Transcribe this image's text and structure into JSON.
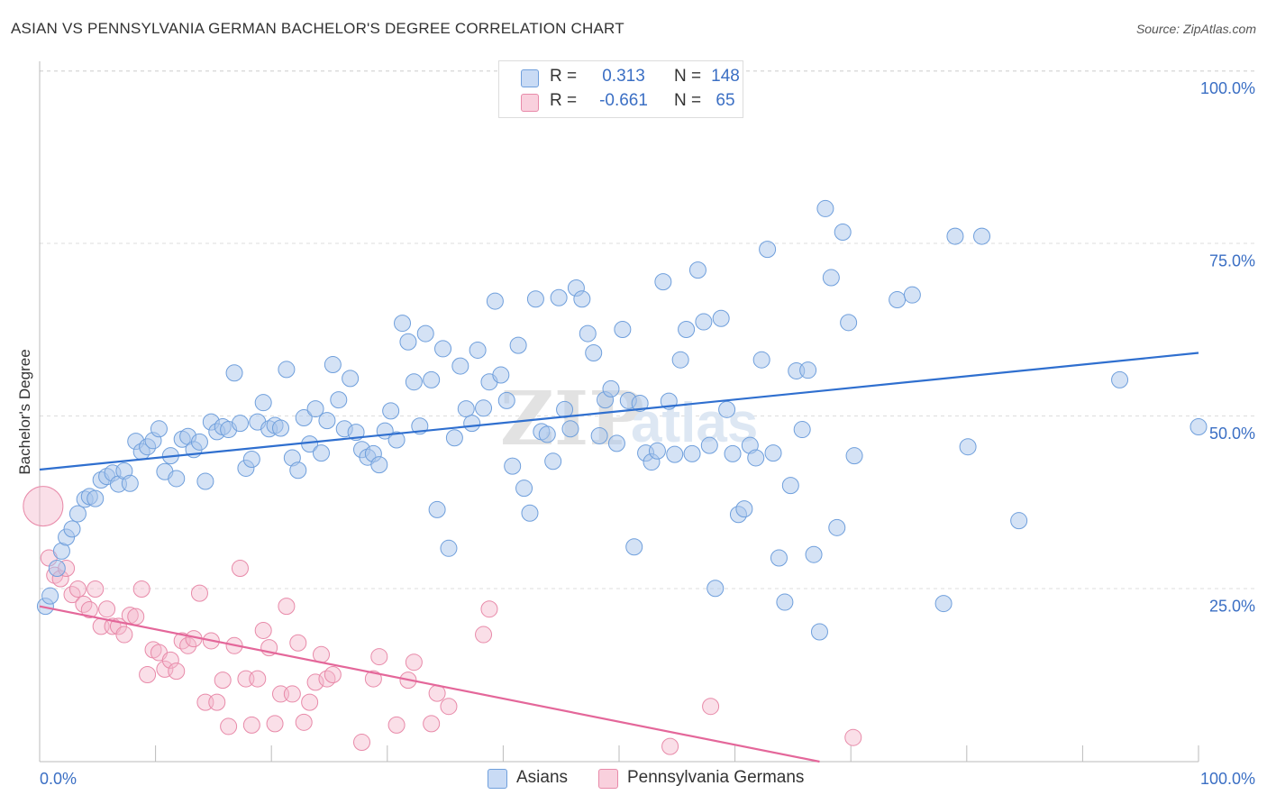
{
  "header": {
    "title": "ASIAN VS PENNSYLVANIA GERMAN BACHELOR'S DEGREE CORRELATION CHART",
    "source": "Source: ZipAtlas.com"
  },
  "legend": {
    "r_label": "R =",
    "n_label": "N =",
    "rows": [
      {
        "r": "0.313",
        "n": "148"
      },
      {
        "r": "-0.661",
        "n": "65"
      }
    ]
  },
  "watermark": {
    "zip": "ZIP",
    "atlas": "atlas"
  },
  "colors": {
    "asian_fill": "#a9c6ec",
    "asian_stroke": "#6f9fdc",
    "asian_line": "#2f6fcf",
    "pg_fill": "#f4b8cb",
    "pg_stroke": "#e88aa9",
    "pg_line": "#e4679a",
    "axis_text": "#3b6fc4"
  },
  "chart_data": {
    "type": "scatter",
    "title": "ASIAN VS PENNSYLVANIA GERMAN BACHELOR'S DEGREE CORRELATION CHART",
    "ylabel": "Bachelor's Degree",
    "xlabel": "",
    "xlim": [
      0,
      100
    ],
    "ylim": [
      0,
      100
    ],
    "x_tick_labels": [
      "0.0%",
      "100.0%"
    ],
    "y_tick_labels": [
      "100.0%",
      "75.0%",
      "50.0%",
      "25.0%"
    ],
    "y_ticks": [
      100,
      75,
      50,
      25
    ],
    "grid": true,
    "legend_position": "top-center",
    "series": [
      {
        "name": "Asians",
        "r": 0.313,
        "n": 148,
        "trend": [
          [
            0,
            42.3
          ],
          [
            100,
            59.2
          ]
        ],
        "points": [
          [
            0.5,
            22.5
          ],
          [
            0.9,
            24.0
          ],
          [
            1.5,
            28.0
          ],
          [
            1.9,
            30.5
          ],
          [
            2.3,
            32.5
          ],
          [
            2.8,
            33.7
          ],
          [
            3.3,
            35.9
          ],
          [
            3.9,
            38.0
          ],
          [
            4.3,
            38.4
          ],
          [
            4.8,
            38.1
          ],
          [
            5.3,
            40.8
          ],
          [
            5.8,
            41.3
          ],
          [
            6.3,
            41.8
          ],
          [
            6.8,
            40.2
          ],
          [
            7.3,
            42.1
          ],
          [
            7.8,
            40.3
          ],
          [
            8.3,
            46.4
          ],
          [
            8.8,
            44.9
          ],
          [
            9.3,
            45.6
          ],
          [
            9.8,
            46.5
          ],
          [
            10.3,
            48.2
          ],
          [
            10.8,
            42.0
          ],
          [
            11.3,
            44.3
          ],
          [
            11.8,
            41.0
          ],
          [
            12.3,
            46.7
          ],
          [
            12.8,
            47.1
          ],
          [
            13.3,
            45.2
          ],
          [
            13.8,
            46.3
          ],
          [
            14.3,
            40.6
          ],
          [
            14.8,
            49.2
          ],
          [
            15.3,
            47.8
          ],
          [
            15.8,
            48.5
          ],
          [
            16.3,
            48.1
          ],
          [
            16.8,
            56.3
          ],
          [
            17.3,
            49.0
          ],
          [
            17.8,
            42.5
          ],
          [
            18.3,
            43.8
          ],
          [
            18.8,
            49.2
          ],
          [
            19.3,
            52.0
          ],
          [
            19.8,
            48.2
          ],
          [
            20.3,
            48.7
          ],
          [
            20.8,
            48.3
          ],
          [
            21.3,
            56.8
          ],
          [
            21.8,
            44.0
          ],
          [
            22.3,
            42.2
          ],
          [
            22.8,
            49.8
          ],
          [
            23.3,
            46.0
          ],
          [
            23.8,
            51.1
          ],
          [
            24.3,
            44.7
          ],
          [
            24.8,
            49.4
          ],
          [
            25.3,
            57.5
          ],
          [
            25.8,
            52.4
          ],
          [
            26.3,
            48.2
          ],
          [
            26.8,
            55.5
          ],
          [
            27.3,
            47.7
          ],
          [
            27.8,
            45.2
          ],
          [
            28.3,
            44.1
          ],
          [
            28.8,
            44.6
          ],
          [
            29.3,
            43.0
          ],
          [
            29.8,
            47.9
          ],
          [
            30.3,
            50.8
          ],
          [
            30.8,
            46.6
          ],
          [
            31.3,
            63.5
          ],
          [
            31.8,
            60.8
          ],
          [
            32.3,
            55.0
          ],
          [
            32.8,
            48.6
          ],
          [
            33.3,
            62.0
          ],
          [
            33.8,
            55.3
          ],
          [
            34.3,
            36.5
          ],
          [
            34.8,
            59.8
          ],
          [
            35.3,
            30.9
          ],
          [
            35.8,
            46.9
          ],
          [
            36.3,
            57.3
          ],
          [
            36.8,
            51.1
          ],
          [
            37.3,
            49.0
          ],
          [
            37.8,
            59.6
          ],
          [
            38.3,
            51.2
          ],
          [
            38.8,
            55.0
          ],
          [
            39.3,
            66.7
          ],
          [
            39.8,
            56.0
          ],
          [
            40.3,
            52.3
          ],
          [
            40.8,
            42.8
          ],
          [
            41.3,
            60.3
          ],
          [
            41.8,
            39.6
          ],
          [
            42.3,
            36.0
          ],
          [
            42.8,
            67.0
          ],
          [
            43.3,
            47.8
          ],
          [
            43.8,
            47.4
          ],
          [
            44.3,
            43.5
          ],
          [
            44.8,
            67.2
          ],
          [
            45.3,
            51.0
          ],
          [
            45.8,
            48.2
          ],
          [
            46.3,
            68.6
          ],
          [
            46.8,
            67.0
          ],
          [
            47.3,
            62.0
          ],
          [
            47.8,
            59.2
          ],
          [
            48.3,
            47.2
          ],
          [
            48.8,
            52.4
          ],
          [
            49.3,
            54.0
          ],
          [
            49.8,
            46.1
          ],
          [
            50.3,
            62.6
          ],
          [
            50.8,
            52.3
          ],
          [
            51.3,
            31.1
          ],
          [
            51.8,
            51.9
          ],
          [
            52.3,
            44.7
          ],
          [
            52.8,
            43.4
          ],
          [
            53.3,
            45.0
          ],
          [
            53.8,
            69.5
          ],
          [
            54.3,
            52.2
          ],
          [
            54.8,
            44.5
          ],
          [
            55.3,
            58.2
          ],
          [
            55.8,
            62.6
          ],
          [
            56.3,
            44.6
          ],
          [
            56.8,
            71.2
          ],
          [
            57.3,
            63.7
          ],
          [
            57.8,
            45.8
          ],
          [
            58.3,
            25.1
          ],
          [
            58.8,
            64.2
          ],
          [
            59.3,
            51.0
          ],
          [
            59.8,
            44.6
          ],
          [
            60.3,
            35.8
          ],
          [
            60.8,
            36.6
          ],
          [
            61.3,
            45.8
          ],
          [
            61.8,
            44.0
          ],
          [
            62.3,
            58.2
          ],
          [
            62.8,
            74.2
          ],
          [
            63.3,
            44.7
          ],
          [
            63.8,
            29.5
          ],
          [
            64.3,
            23.1
          ],
          [
            64.8,
            40.0
          ],
          [
            65.3,
            56.6
          ],
          [
            65.8,
            48.1
          ],
          [
            66.3,
            56.7
          ],
          [
            66.8,
            30.0
          ],
          [
            67.3,
            18.8
          ],
          [
            67.8,
            80.1
          ],
          [
            68.3,
            70.1
          ],
          [
            68.8,
            33.9
          ],
          [
            69.3,
            76.7
          ],
          [
            69.8,
            63.6
          ],
          [
            70.3,
            44.3
          ],
          [
            74.0,
            66.9
          ],
          [
            75.3,
            67.6
          ],
          [
            78.0,
            22.9
          ],
          [
            79.0,
            76.1
          ],
          [
            80.1,
            45.6
          ],
          [
            81.3,
            76.1
          ],
          [
            84.5,
            34.9
          ],
          [
            100.0,
            48.5
          ],
          [
            93.2,
            55.3
          ]
        ]
      },
      {
        "name": "Pennsylvania Germans",
        "r": -0.661,
        "n": 65,
        "trend": [
          [
            0,
            22.5
          ],
          [
            67.3,
            0
          ]
        ],
        "points": [
          [
            0.3,
            37.0
          ],
          [
            0.8,
            29.5
          ],
          [
            1.3,
            27.0
          ],
          [
            1.8,
            26.5
          ],
          [
            2.3,
            28.0
          ],
          [
            2.8,
            24.2
          ],
          [
            3.3,
            25.0
          ],
          [
            3.8,
            22.8
          ],
          [
            4.3,
            22.0
          ],
          [
            4.8,
            25.0
          ],
          [
            5.3,
            19.6
          ],
          [
            5.8,
            22.1
          ],
          [
            6.3,
            19.6
          ],
          [
            6.8,
            19.6
          ],
          [
            7.3,
            18.4
          ],
          [
            7.8,
            21.2
          ],
          [
            8.3,
            21.0
          ],
          [
            8.8,
            25.0
          ],
          [
            9.3,
            12.6
          ],
          [
            9.8,
            16.2
          ],
          [
            10.3,
            15.8
          ],
          [
            10.8,
            13.4
          ],
          [
            11.3,
            14.7
          ],
          [
            11.8,
            13.1
          ],
          [
            12.3,
            17.5
          ],
          [
            12.8,
            16.8
          ],
          [
            13.3,
            17.8
          ],
          [
            13.8,
            24.4
          ],
          [
            14.3,
            8.6
          ],
          [
            14.8,
            17.5
          ],
          [
            15.3,
            8.6
          ],
          [
            15.8,
            11.8
          ],
          [
            16.3,
            5.1
          ],
          [
            16.8,
            16.8
          ],
          [
            17.3,
            28.0
          ],
          [
            17.8,
            12.0
          ],
          [
            18.3,
            5.3
          ],
          [
            18.8,
            12.0
          ],
          [
            19.3,
            19.0
          ],
          [
            19.8,
            16.5
          ],
          [
            20.3,
            5.5
          ],
          [
            20.8,
            9.8
          ],
          [
            21.3,
            22.5
          ],
          [
            21.8,
            9.8
          ],
          [
            22.3,
            17.2
          ],
          [
            22.8,
            5.7
          ],
          [
            23.3,
            8.6
          ],
          [
            23.8,
            11.5
          ],
          [
            24.3,
            15.5
          ],
          [
            24.8,
            12.0
          ],
          [
            25.3,
            12.6
          ],
          [
            27.8,
            2.8
          ],
          [
            28.8,
            12.0
          ],
          [
            29.3,
            15.2
          ],
          [
            30.8,
            5.3
          ],
          [
            31.8,
            11.8
          ],
          [
            32.3,
            14.4
          ],
          [
            33.8,
            5.5
          ],
          [
            34.3,
            9.9
          ],
          [
            35.3,
            8.0
          ],
          [
            38.3,
            18.4
          ],
          [
            38.8,
            22.1
          ],
          [
            54.4,
            2.2
          ],
          [
            57.9,
            8.0
          ],
          [
            70.2,
            3.5
          ]
        ]
      }
    ]
  }
}
